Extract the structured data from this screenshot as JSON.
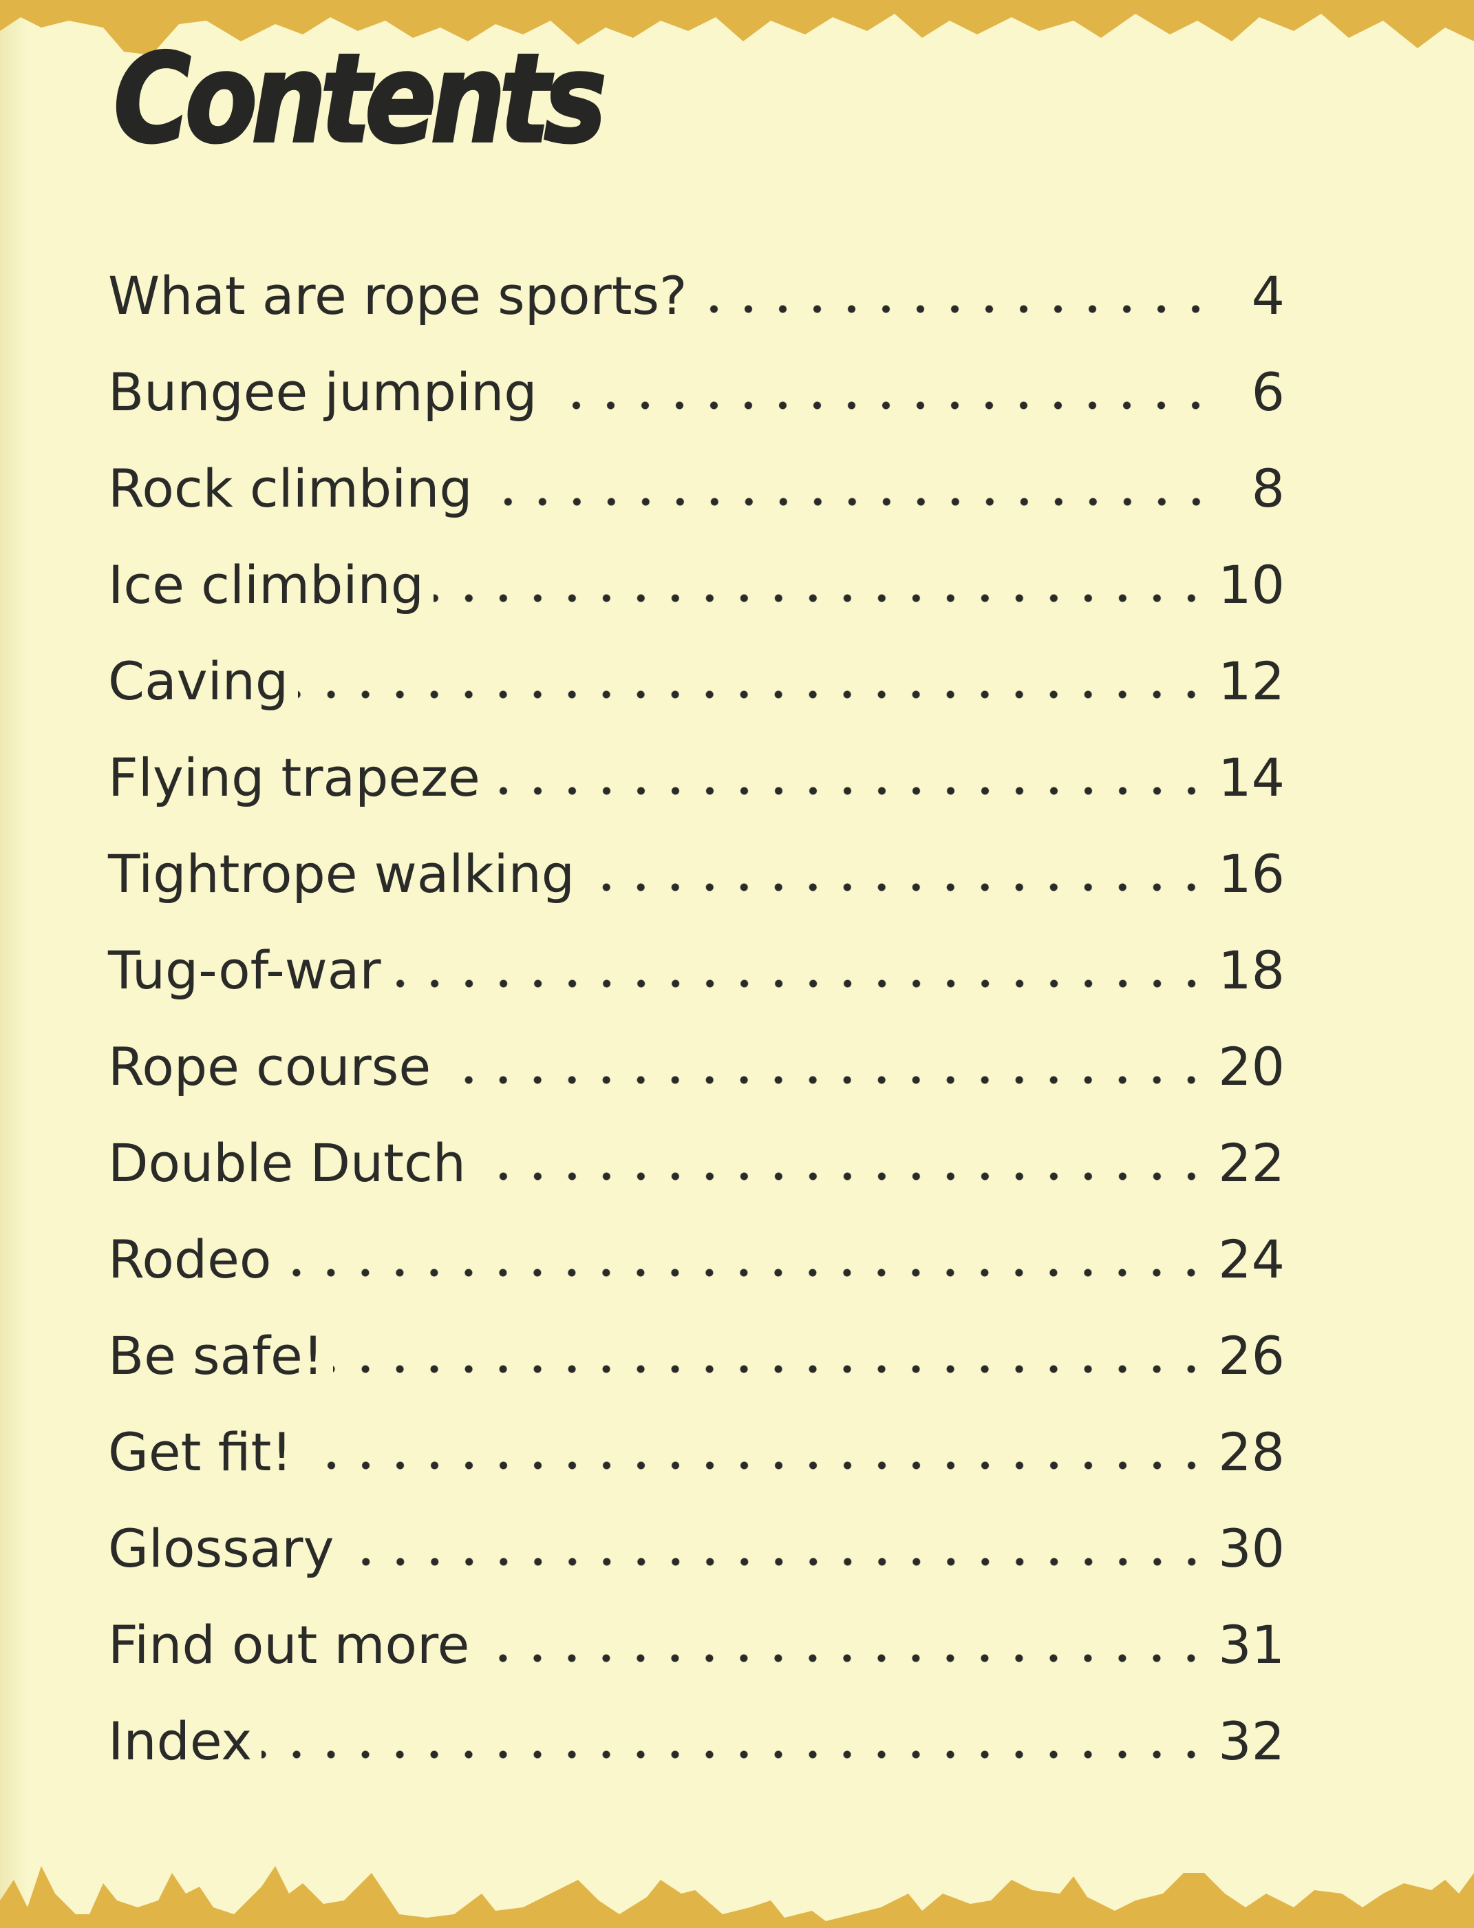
{
  "page": {
    "title": "Contents",
    "colors": {
      "background": "#f9f7cb",
      "border_paint": "#e0b447",
      "text": "#2a2a28"
    }
  },
  "toc": [
    {
      "title": "What are rope sports?",
      "page": "4"
    },
    {
      "title": "Bungee jumping",
      "page": "6"
    },
    {
      "title": "Rock climbing",
      "page": "8"
    },
    {
      "title": "Ice climbing",
      "page": "10"
    },
    {
      "title": "Caving",
      "page": "12"
    },
    {
      "title": "Flying trapeze",
      "page": "14"
    },
    {
      "title": "Tightrope walking",
      "page": "16"
    },
    {
      "title": "Tug-of-war",
      "page": "18"
    },
    {
      "title": "Rope course",
      "page": "20"
    },
    {
      "title": "Double Dutch",
      "page": "22"
    },
    {
      "title": "Rodeo",
      "page": "24"
    },
    {
      "title": "Be safe!",
      "page": "26"
    },
    {
      "title": "Get fit!",
      "page": "28"
    },
    {
      "title": "Glossary",
      "page": "30"
    },
    {
      "title": "Find out more",
      "page": "31"
    },
    {
      "title": "Index",
      "page": "32"
    }
  ]
}
